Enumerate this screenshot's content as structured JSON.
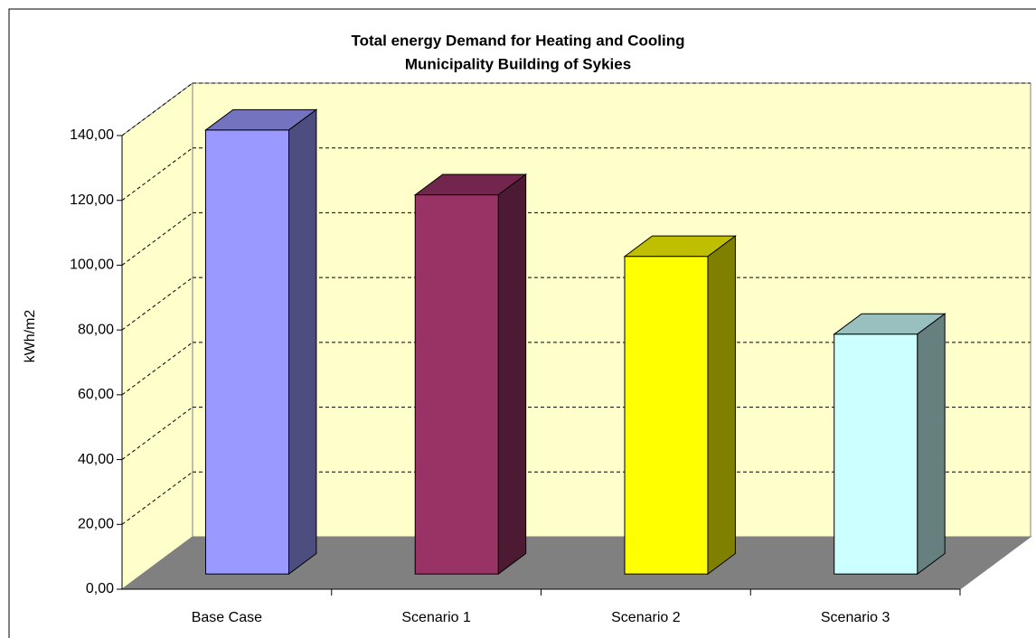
{
  "chart_data": {
    "type": "bar3d",
    "title": "Total energy Demand for Heating and Cooling",
    "subtitle": "Municipality Building of Sykies",
    "y_label": "kWh/m2",
    "categories": [
      "Base Case",
      "Scenario 1",
      "Scenario 2",
      "Scenario 3"
    ],
    "values": [
      137,
      117,
      98,
      74
    ],
    "colors": [
      "#9999ff",
      "#993366",
      "#ffff00",
      "#ccffff"
    ],
    "ylim": [
      0,
      140
    ],
    "yticks": [
      {
        "value": 0,
        "label": "0,00"
      },
      {
        "value": 20,
        "label": "20,00"
      },
      {
        "value": 40,
        "label": "40,00"
      },
      {
        "value": 60,
        "label": "60,00"
      },
      {
        "value": 80,
        "label": "80,00"
      },
      {
        "value": 100,
        "label": "100,00"
      },
      {
        "value": 120,
        "label": "120,00"
      },
      {
        "value": 140,
        "label": "140,00"
      }
    ],
    "grid": true
  }
}
